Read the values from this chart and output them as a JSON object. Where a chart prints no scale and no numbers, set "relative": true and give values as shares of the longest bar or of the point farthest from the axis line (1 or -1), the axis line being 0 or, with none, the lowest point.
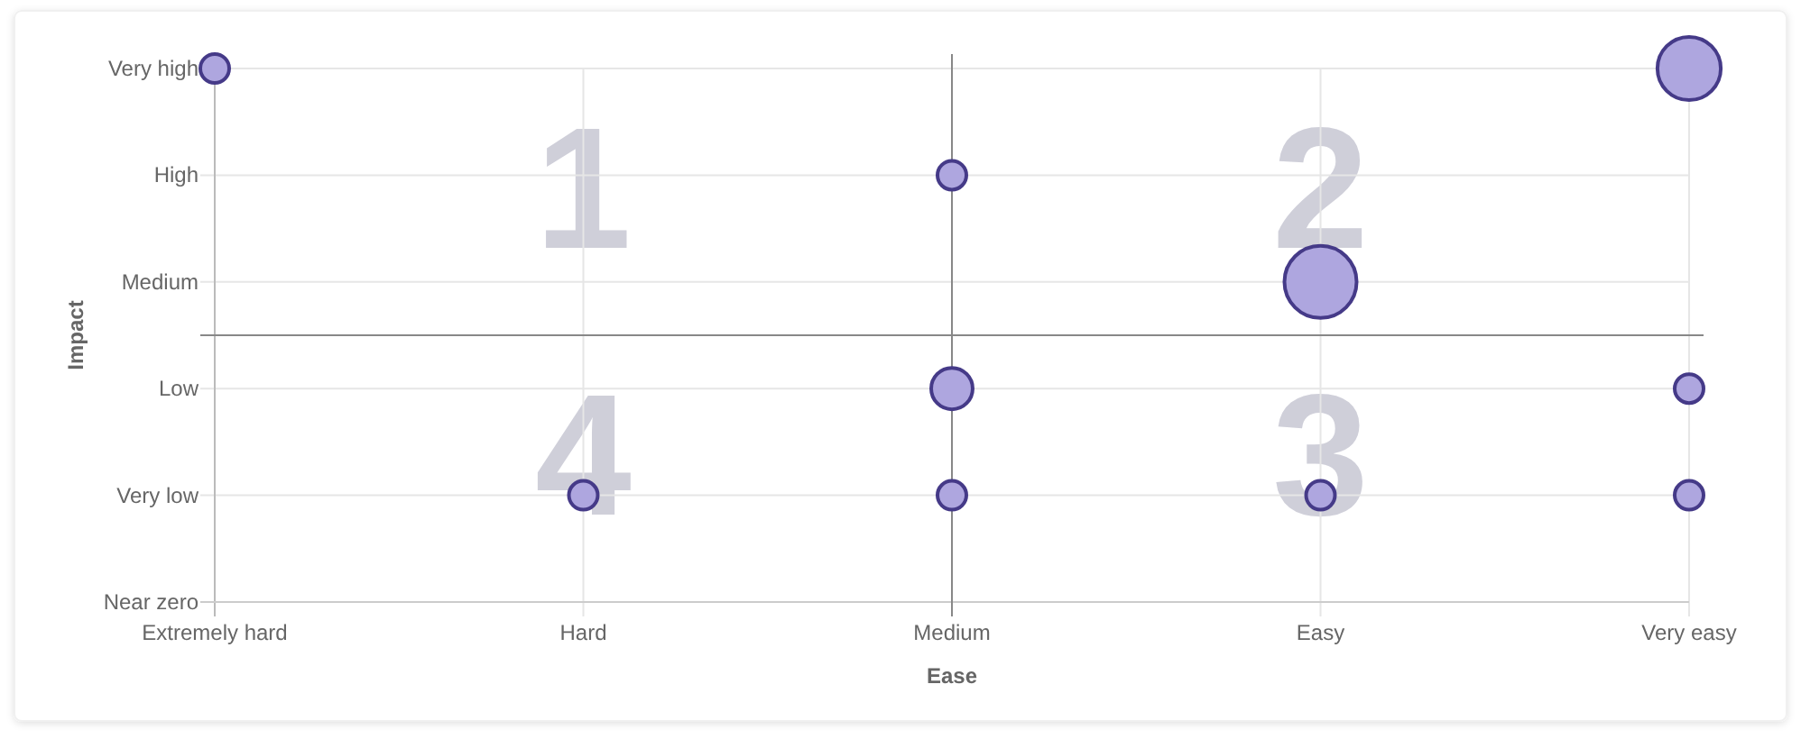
{
  "chart_data": {
    "type": "bubble",
    "xlabel": "Ease",
    "ylabel": "Impact",
    "relative": true,
    "categories": [
      "Extremely hard",
      "Hard",
      "Medium",
      "Easy",
      "Very easy"
    ],
    "y_categories": [
      "Very high",
      "High",
      "Medium",
      "Low",
      "Very low",
      "Near zero"
    ],
    "series": [
      {
        "color": "#aea6df",
        "values": [
          1,
          0.2,
          0.8,
          0.6,
          1
        ],
        "sizes": [
          0.16,
          0.16,
          0.16,
          1,
          0.77
        ]
      },
      {
        "color": "#aea6df",
        "values": [
          null,
          null,
          0.4,
          0.2,
          0.4
        ],
        "sizes": [
          null,
          null,
          0.33,
          0.16,
          0.16
        ]
      },
      {
        "color": "#aea6df",
        "values": [
          null,
          null,
          0.2,
          null,
          0.2
        ],
        "sizes": [
          null,
          null,
          0.16,
          null,
          0.16
        ]
      }
    ],
    "marker": "circle",
    "grid": true,
    "ref_lines": [
      {
        "axis": "x",
        "value": "Medium"
      },
      {
        "axis": "y",
        "value": 0.5
      }
    ],
    "annotations": [
      "1",
      "2",
      "3",
      "4"
    ]
  }
}
